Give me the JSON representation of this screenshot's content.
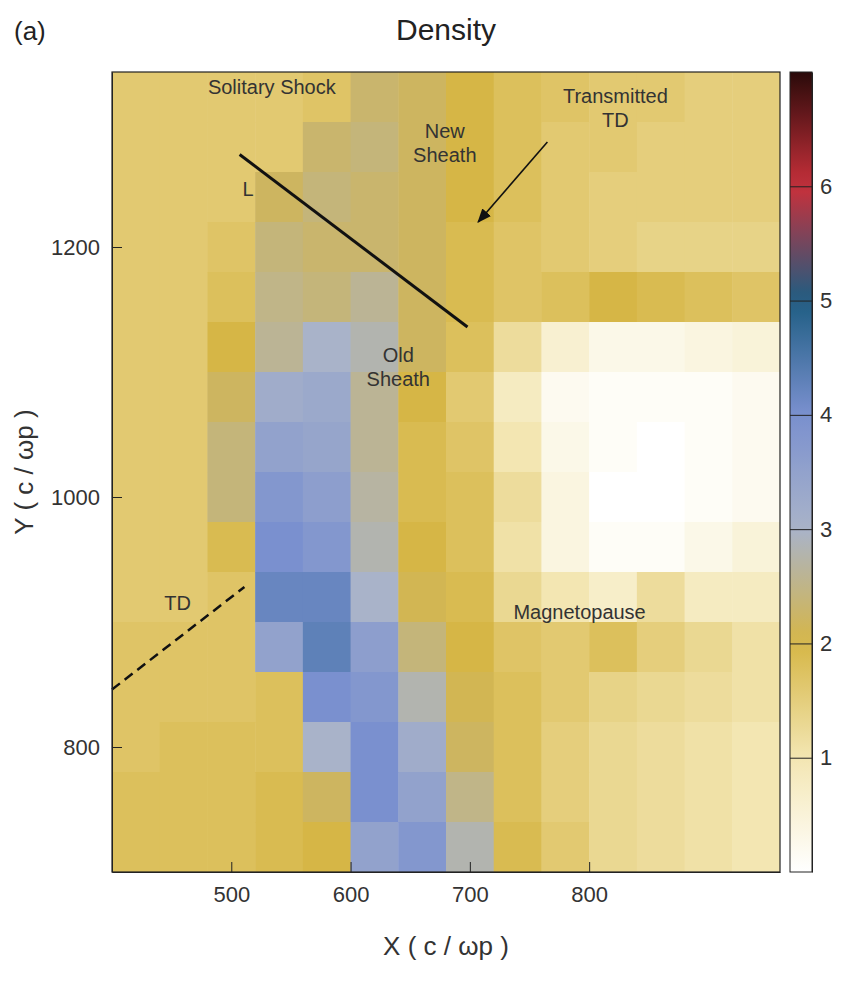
{
  "chart_data": {
    "type": "heatmap",
    "title": "Density",
    "panel_label": "(a)",
    "xlabel": "X ( c / ωp )",
    "ylabel": "Y ( c / ωp )",
    "xlim": [
      400,
      960
    ],
    "ylim": [
      700,
      1340
    ],
    "xticks": [
      500,
      600,
      700,
      800
    ],
    "yticks": [
      800,
      1000,
      1200
    ],
    "x": [
      420,
      460,
      500,
      540,
      580,
      620,
      660,
      700,
      740,
      780,
      820,
      860,
      900,
      940
    ],
    "y": [
      1320,
      1280,
      1240,
      1200,
      1160,
      1120,
      1080,
      1040,
      1000,
      960,
      920,
      880,
      840,
      800,
      760,
      720
    ],
    "z": [
      [
        1.6,
        1.6,
        1.6,
        1.6,
        1.7,
        2.3,
        2.2,
        2.0,
        1.8,
        1.7,
        1.6,
        1.6,
        1.5,
        1.5
      ],
      [
        1.6,
        1.6,
        1.6,
        1.6,
        2.3,
        2.4,
        2.2,
        2.0,
        1.8,
        1.6,
        1.6,
        1.5,
        1.5,
        1.5
      ],
      [
        1.6,
        1.6,
        1.6,
        2.2,
        2.4,
        2.3,
        2.2,
        2.0,
        1.8,
        1.6,
        1.5,
        1.5,
        1.5,
        1.5
      ],
      [
        1.6,
        1.6,
        1.7,
        2.4,
        2.3,
        2.3,
        2.2,
        1.9,
        1.7,
        1.6,
        1.5,
        1.4,
        1.4,
        1.4
      ],
      [
        1.6,
        1.6,
        1.8,
        2.5,
        2.4,
        2.6,
        2.2,
        1.9,
        1.7,
        1.8,
        2.0,
        1.9,
        1.8,
        1.7
      ],
      [
        1.6,
        1.6,
        2.0,
        2.6,
        3.0,
        2.8,
        2.2,
        1.8,
        1.2,
        0.6,
        0.3,
        0.3,
        0.4,
        0.5
      ],
      [
        1.6,
        1.6,
        2.2,
        3.2,
        3.3,
        2.6,
        2.0,
        1.6,
        0.8,
        0.2,
        0.1,
        0.1,
        0.1,
        0.2
      ],
      [
        1.6,
        1.6,
        2.4,
        3.5,
        3.4,
        2.6,
        1.9,
        1.7,
        1.0,
        0.3,
        0.1,
        0.0,
        0.1,
        0.2
      ],
      [
        1.6,
        1.6,
        2.4,
        3.8,
        3.6,
        2.7,
        1.9,
        1.8,
        1.2,
        0.4,
        0.0,
        0.0,
        0.1,
        0.2
      ],
      [
        1.6,
        1.6,
        1.9,
        4.0,
        3.8,
        2.8,
        2.0,
        1.8,
        1.1,
        0.4,
        0.1,
        0.1,
        0.3,
        0.5
      ],
      [
        1.6,
        1.6,
        1.7,
        4.2,
        4.2,
        3.0,
        2.1,
        1.9,
        1.3,
        1.0,
        0.7,
        1.2,
        0.8,
        0.8
      ],
      [
        1.7,
        1.7,
        1.7,
        3.5,
        4.3,
        3.6,
        2.4,
        2.0,
        1.7,
        1.6,
        1.8,
        1.5,
        1.3,
        1.1
      ],
      [
        1.7,
        1.7,
        1.7,
        1.8,
        4.0,
        3.8,
        2.8,
        2.1,
        1.8,
        1.6,
        1.4,
        1.3,
        1.2,
        1.1
      ],
      [
        1.7,
        1.8,
        1.8,
        1.8,
        3.0,
        4.0,
        3.2,
        2.2,
        1.8,
        1.5,
        1.3,
        1.2,
        1.1,
        1.0
      ],
      [
        1.8,
        1.8,
        1.8,
        1.9,
        2.2,
        4.0,
        3.5,
        2.5,
        1.8,
        1.5,
        1.3,
        1.2,
        1.1,
        1.0
      ],
      [
        1.8,
        1.8,
        1.8,
        1.9,
        2.0,
        3.5,
        3.8,
        2.8,
        1.9,
        1.6,
        1.3,
        1.2,
        1.1,
        1.0
      ]
    ],
    "colorbar": {
      "range": [
        0,
        7
      ],
      "ticks": [
        1,
        2,
        3,
        4,
        5,
        6
      ]
    },
    "annotations": [
      {
        "text": [
          "Solitary Shock"
        ],
        "x": 534,
        "y": 1327
      },
      {
        "text": [
          "New",
          "Sheath"
        ],
        "x": 679,
        "y": 1282
      },
      {
        "text": [
          "Transmitted",
          "TD"
        ],
        "x": 822,
        "y": 1310
      },
      {
        "text": [
          "L"
        ],
        "x": 514,
        "y": 1245
      },
      {
        "text": [
          "Old",
          "Sheath"
        ],
        "x": 640,
        "y": 1103
      },
      {
        "text": [
          "TD"
        ],
        "x": 455,
        "y": 914
      },
      {
        "text": [
          "Magnetopause"
        ],
        "x": 792,
        "y": 907
      }
    ],
    "lines": [
      {
        "x": [
          507,
          698
        ],
        "y": [
          1274,
          1136
        ],
        "line_style": "solid"
      },
      {
        "x": [
          400,
          511
        ],
        "y": [
          846,
          928
        ],
        "line_style": "dashed"
      }
    ],
    "arrows": [
      {
        "x": [
          765,
          707
        ],
        "y": [
          1284,
          1220
        ]
      }
    ]
  }
}
